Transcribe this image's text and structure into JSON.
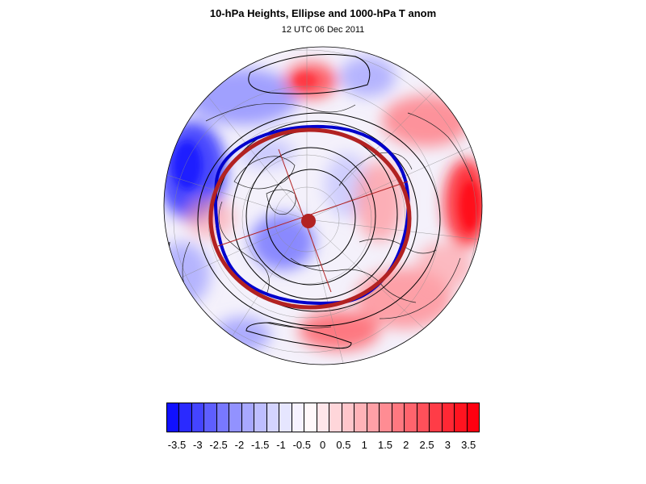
{
  "title": "10-hPa Heights, Ellipse and 1000-hPa T anom",
  "subtitle": "12 UTC 06 Dec 2011",
  "colorbar": {
    "labels": [
      "-3.5",
      "-3",
      "-2.5",
      "-2",
      "-1.5",
      "-1",
      "-0.5",
      "0",
      "0.5",
      "1",
      "1.5",
      "2",
      "2.5",
      "3",
      "3.5"
    ],
    "colors": [
      "#1010ff",
      "#2a2aff",
      "#4444ff",
      "#5e5eff",
      "#7878ff",
      "#9292ff",
      "#a8a8ff",
      "#bebeff",
      "#d4d4ff",
      "#e6e6ff",
      "#f6f2ff",
      "#fff8fa",
      "#ffe6ea",
      "#ffd6da",
      "#ffc6cb",
      "#ffb3b8",
      "#ffa0a6",
      "#ff8c93",
      "#ff7880",
      "#ff646d",
      "#ff505a",
      "#ff3c47",
      "#ff2834",
      "#ff1420",
      "#ff0010"
    ]
  },
  "colors": {
    "ellipse": "#b22222",
    "polar_vortex_edge": "#0000cc",
    "height_contours": "#000000",
    "cold_anomaly": "#0000ff",
    "warm_anomaly": "#ff0000"
  }
}
